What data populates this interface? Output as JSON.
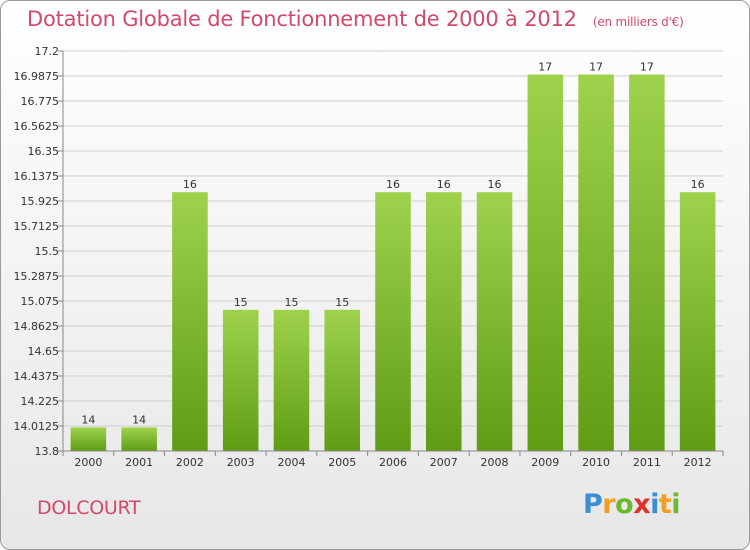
{
  "header": {
    "title": "Dotation Globale de Fonctionnement de 2000 à 2012",
    "unit_note": "(en milliers d'€)"
  },
  "footer": {
    "commune": "DOLCOURT",
    "logo_text": "Proxiti"
  },
  "colors": {
    "title": "#d04a6a",
    "bar_light": "#9fd24c",
    "bar_dark": "#5f9c14",
    "grid": "#d0d0d0",
    "logo_p": "#3a8fd4",
    "logo_r": "#f0a020",
    "logo_o": "#6cb82e",
    "logo_x": "#e0302a",
    "logo_i": "#3a8fd4",
    "logo_t": "#f0a020",
    "logo_i2": "#6cb82e"
  },
  "chart_data": {
    "type": "bar",
    "title": "Dotation Globale de Fonctionnement de 2000 à 2012",
    "subtitle": "(en milliers d'€)",
    "categories": [
      "2000",
      "2001",
      "2002",
      "2003",
      "2004",
      "2005",
      "2006",
      "2007",
      "2008",
      "2009",
      "2010",
      "2011",
      "2012"
    ],
    "values": [
      14,
      14,
      16,
      15,
      15,
      15,
      16,
      16,
      16,
      17,
      17,
      17,
      16
    ],
    "data_labels": [
      "14",
      "14",
      "16",
      "15",
      "15",
      "15",
      "16",
      "16",
      "16",
      "17",
      "17",
      "17",
      "16"
    ],
    "ylim": [
      13.8,
      17.2
    ],
    "yticks": [
      "13.8",
      "14.0125",
      "14.225",
      "14.4375",
      "14.65",
      "14.8625",
      "15.075",
      "15.2875",
      "15.5",
      "15.7125",
      "15.925",
      "16.1375",
      "16.35",
      "16.5625",
      "16.775",
      "16.9875",
      "17.2"
    ],
    "grid": true,
    "legend": "none",
    "xlabel": "",
    "ylabel": ""
  }
}
